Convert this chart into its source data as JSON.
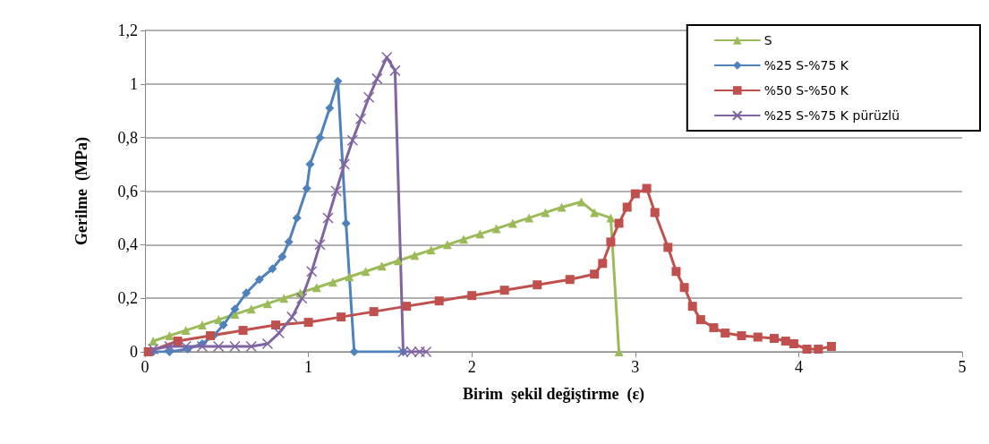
{
  "chart_data": {
    "type": "line",
    "xlabel": "Birim  şekil değiştirme  (ε)",
    "ylabel": "Gerilme  (MPa)",
    "xlim": [
      0,
      5
    ],
    "xticks": [
      0,
      1,
      2,
      3,
      4,
      5
    ],
    "ylim": [
      0,
      1.2
    ],
    "yticks": [
      0,
      {
        "value": 0.2,
        "label": "0,2"
      },
      {
        "value": 0.4,
        "label": "0,4"
      },
      {
        "value": 0.6,
        "label": "0,6"
      },
      {
        "value": 0.8,
        "label": "0,8"
      },
      1,
      {
        "value": 1.2,
        "label": "1,2"
      }
    ],
    "grid": "y",
    "legend": "top right",
    "line_style": "solid",
    "series": [
      {
        "name": "S",
        "color": "#9bbb59",
        "marker": "triangle",
        "x": [
          0.05,
          0.15,
          0.25,
          0.35,
          0.45,
          0.55,
          0.65,
          0.75,
          0.85,
          0.95,
          1.05,
          1.15,
          1.25,
          1.35,
          1.45,
          1.55,
          1.65,
          1.75,
          1.85,
          1.95,
          2.05,
          2.15,
          2.25,
          2.35,
          2.45,
          2.55,
          2.67,
          2.75,
          2.85,
          2.9
        ],
        "values": [
          0.04,
          0.06,
          0.08,
          0.1,
          0.12,
          0.14,
          0.16,
          0.18,
          0.2,
          0.22,
          0.24,
          0.26,
          0.28,
          0.3,
          0.32,
          0.34,
          0.36,
          0.38,
          0.4,
          0.42,
          0.44,
          0.46,
          0.48,
          0.5,
          0.52,
          0.54,
          0.56,
          0.52,
          0.5,
          0
        ]
      },
      {
        "name": "%25 S-%75 K",
        "color": "#4f81bd",
        "marker": "diamond",
        "x": [
          0.05,
          0.15,
          0.26,
          0.35,
          0.42,
          0.48,
          0.55,
          0.62,
          0.7,
          0.78,
          0.84,
          0.88,
          0.93,
          0.99,
          1.01,
          1.07,
          1.13,
          1.18,
          1.23,
          1.28,
          1.58
        ],
        "values": [
          0,
          0,
          0.01,
          0.03,
          0.06,
          0.1,
          0.16,
          0.22,
          0.27,
          0.31,
          0.355,
          0.41,
          0.5,
          0.61,
          0.7,
          0.8,
          0.91,
          1.01,
          0.48,
          0,
          0
        ]
      },
      {
        "name": "%50 S-%50 K",
        "color": "#c0504d",
        "marker": "square",
        "x": [
          0.02,
          0.2,
          0.4,
          0.6,
          0.8,
          1.0,
          1.2,
          1.4,
          1.6,
          1.8,
          2.0,
          2.2,
          2.4,
          2.6,
          2.75,
          2.8,
          2.85,
          2.9,
          2.95,
          3.0,
          3.07,
          3.12,
          3.2,
          3.25,
          3.3,
          3.35,
          3.4,
          3.48,
          3.55,
          3.65,
          3.75,
          3.85,
          3.92,
          3.97,
          4.05,
          4.12,
          4.2
        ],
        "values": [
          0,
          0.04,
          0.06,
          0.08,
          0.1,
          0.11,
          0.13,
          0.15,
          0.17,
          0.19,
          0.21,
          0.23,
          0.25,
          0.27,
          0.29,
          0.33,
          0.41,
          0.48,
          0.54,
          0.59,
          0.61,
          0.52,
          0.39,
          0.3,
          0.24,
          0.17,
          0.12,
          0.09,
          0.07,
          0.06,
          0.055,
          0.05,
          0.04,
          0.03,
          0.01,
          0.01,
          0.02
        ]
      },
      {
        "name": "%25 S-%75 K pürüzlü",
        "color": "#8064a2",
        "marker": "cross",
        "x": [
          0.05,
          0.15,
          0.25,
          0.35,
          0.45,
          0.55,
          0.65,
          0.75,
          0.82,
          0.9,
          0.96,
          1.02,
          1.07,
          1.12,
          1.17,
          1.22,
          1.27,
          1.32,
          1.37,
          1.42,
          1.48,
          1.53,
          1.58,
          1.63,
          1.68,
          1.72
        ],
        "values": [
          0.01,
          0.02,
          0.02,
          0.02,
          0.02,
          0.02,
          0.02,
          0.03,
          0.07,
          0.13,
          0.2,
          0.3,
          0.4,
          0.5,
          0.6,
          0.7,
          0.79,
          0.87,
          0.95,
          1.02,
          1.1,
          1.05,
          0,
          0,
          0,
          0
        ]
      }
    ]
  }
}
